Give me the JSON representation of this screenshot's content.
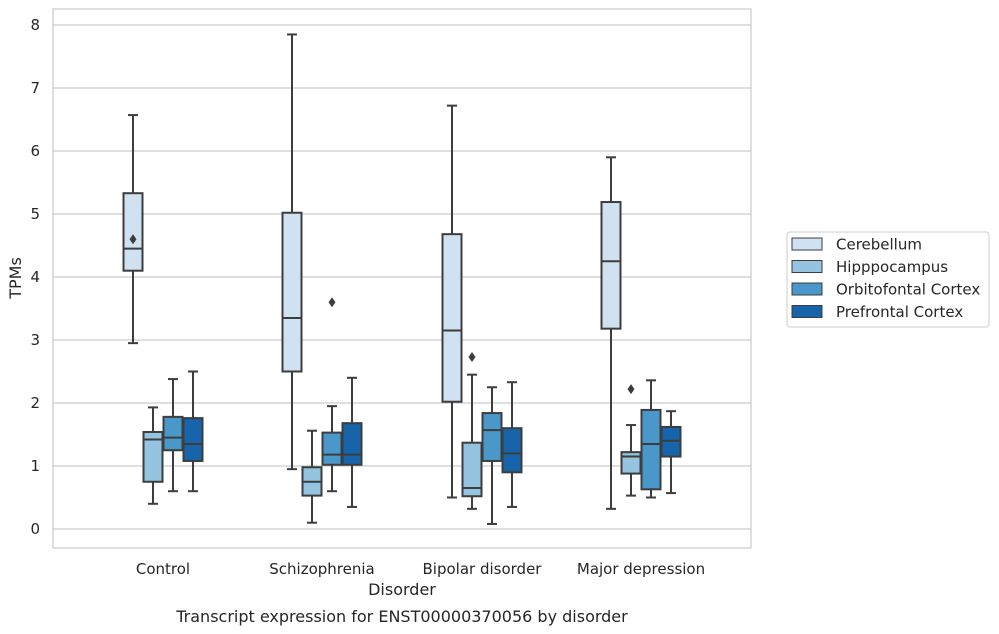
{
  "caption": "Transcript expression for ENST00000370056 by disorder",
  "chart_data": {
    "type": "box",
    "xlabel": "Disorder",
    "ylabel": "TPMs",
    "ylim": [
      -0.3,
      8.25
    ],
    "yticks": [
      0,
      1,
      2,
      3,
      4,
      5,
      6,
      7,
      8
    ],
    "grid": "horizontal",
    "legend_position": "right",
    "categories": [
      "Control",
      "Schizophrenia",
      "Bipolar disorder",
      "Major depression"
    ],
    "series": [
      {
        "name": "Cerebellum",
        "color": "#d0e1f2",
        "boxes": [
          {
            "whislo": 2.95,
            "q1": 4.1,
            "med": 4.45,
            "q3": 5.33,
            "whishi": 6.57,
            "fliers": [
              4.6
            ]
          },
          {
            "whislo": 0.95,
            "q1": 2.5,
            "med": 3.35,
            "q3": 5.02,
            "whishi": 7.85,
            "fliers": []
          },
          {
            "whislo": 0.5,
            "q1": 2.02,
            "med": 3.15,
            "q3": 4.68,
            "whishi": 6.72,
            "fliers": []
          },
          {
            "whislo": 0.32,
            "q1": 3.18,
            "med": 4.25,
            "q3": 5.19,
            "whishi": 5.9,
            "fliers": []
          }
        ]
      },
      {
        "name": "Hipppocampus",
        "color": "#94c4df",
        "boxes": [
          {
            "whislo": 0.4,
            "q1": 0.75,
            "med": 1.42,
            "q3": 1.54,
            "whishi": 1.93,
            "fliers": []
          },
          {
            "whislo": 0.1,
            "q1": 0.53,
            "med": 0.75,
            "q3": 0.98,
            "whishi": 1.56,
            "fliers": []
          },
          {
            "whislo": 0.32,
            "q1": 0.52,
            "med": 0.65,
            "q3": 1.37,
            "whishi": 2.45,
            "fliers": [
              2.73
            ]
          },
          {
            "whislo": 0.53,
            "q1": 0.88,
            "med": 1.15,
            "q3": 1.22,
            "whishi": 1.65,
            "fliers": [
              2.22
            ]
          }
        ]
      },
      {
        "name": "Orbitofontal Cortex",
        "color": "#4a98c9",
        "boxes": [
          {
            "whislo": 0.6,
            "q1": 1.25,
            "med": 1.45,
            "q3": 1.78,
            "whishi": 2.38,
            "fliers": []
          },
          {
            "whislo": 0.6,
            "q1": 1.02,
            "med": 1.18,
            "q3": 1.53,
            "whishi": 1.95,
            "fliers": [
              3.6
            ]
          },
          {
            "whislo": 0.08,
            "q1": 1.08,
            "med": 1.57,
            "q3": 1.84,
            "whishi": 2.25,
            "fliers": []
          },
          {
            "whislo": 0.5,
            "q1": 0.63,
            "med": 1.35,
            "q3": 1.89,
            "whishi": 2.36,
            "fliers": []
          }
        ]
      },
      {
        "name": "Prefrontal Cortex",
        "color": "#1764ab",
        "boxes": [
          {
            "whislo": 0.6,
            "q1": 1.08,
            "med": 1.35,
            "q3": 1.76,
            "whishi": 2.5,
            "fliers": []
          },
          {
            "whislo": 0.35,
            "q1": 1.02,
            "med": 1.18,
            "q3": 1.68,
            "whishi": 2.4,
            "fliers": []
          },
          {
            "whislo": 0.35,
            "q1": 0.9,
            "med": 1.2,
            "q3": 1.6,
            "whishi": 2.33,
            "fliers": []
          },
          {
            "whislo": 0.57,
            "q1": 1.15,
            "med": 1.4,
            "q3": 1.62,
            "whishi": 1.87,
            "fliers": []
          }
        ]
      }
    ]
  }
}
